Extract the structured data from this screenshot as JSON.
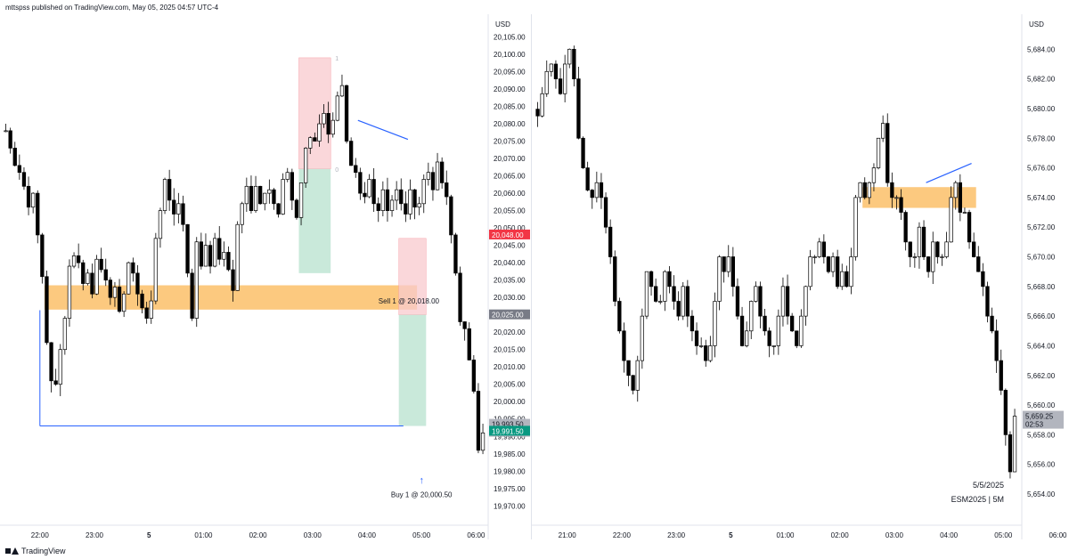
{
  "header": {
    "text": "mttspss published on TradingView.com, May 05, 2025 04:57 UTC-4"
  },
  "footer": {
    "brand": "TradingView"
  },
  "colors": {
    "up_fill": "#ffffff",
    "down_fill": "#000000",
    "wick": "#000000",
    "supply": "#fbbf68",
    "stop": "#f8c9cd",
    "target": "#b7e1cd",
    "trendline": "#2962ff"
  },
  "chart_data": [
    {
      "type": "candlestick",
      "symbol_label": "",
      "currency": "USD",
      "y_ticks": [
        "20,105.00",
        "20,100.00",
        "20,095.00",
        "20,090.00",
        "20,085.00",
        "20,080.00",
        "20,075.00",
        "20,070.00",
        "20,065.00",
        "20,060.00",
        "20,055.00",
        "20,050.00",
        "20,045.00",
        "20,040.00",
        "20,035.00",
        "20,030.00",
        "20,025.00",
        "20,020.00",
        "20,015.00",
        "20,010.00",
        "20,005.00",
        "20,000.00",
        "19,995.00",
        "19,990.00",
        "19,985.00",
        "19,980.00",
        "19,975.00",
        "19,970.00"
      ],
      "y_ticks_values": [
        20105,
        20100,
        20095,
        20090,
        20085,
        20080,
        20075,
        20070,
        20065,
        20060,
        20055,
        20050,
        20045,
        20040,
        20035,
        20030,
        20025,
        20020,
        20015,
        20010,
        20005,
        20000,
        19995,
        19990,
        19985,
        19980,
        19975,
        19970
      ],
      "ylim": [
        19967,
        20110
      ],
      "x_ticks": [
        "22:00",
        "23:00",
        "5",
        "01:00",
        "02:00",
        "03:00",
        "04:00",
        "05:00",
        "06:00"
      ],
      "x_tick_bold": [
        false,
        false,
        true,
        false,
        false,
        false,
        false,
        false,
        false
      ],
      "x_start": "21:20",
      "bar_minutes": 5,
      "price_tags": [
        {
          "label": "20,048.00",
          "value": 20048.0,
          "color": "#f23645",
          "text_color": "#ffffff"
        },
        {
          "label": "20,025.00",
          "value": 20025.0,
          "color": "#787b86",
          "text_color": "#ffffff"
        },
        {
          "label": "19,993.50",
          "sub": "02:53",
          "value": 19993.5,
          "color": "#b2b5be",
          "text_color": "#131722"
        },
        {
          "label": "19,991.50",
          "value": 19991.5,
          "color": "#089981",
          "text_color": "#ffffff"
        }
      ],
      "annotations": {
        "sell_label": "Sell 1 @ 20,018.00",
        "buy_label": "Buy 1 @ 20,000.50",
        "buy_arrow": "↑",
        "marker_1": "1",
        "marker_0": "0"
      },
      "zones": [
        {
          "kind": "supply",
          "from": "22:05",
          "to": "04:55",
          "high": 20033.5,
          "low": 20026.5
        },
        {
          "kind": "stop",
          "from": "02:45",
          "to": "03:20",
          "high": 20099,
          "low": 20067
        },
        {
          "kind": "target",
          "from": "02:45",
          "to": "03:20",
          "high": 20067,
          "low": 20037
        },
        {
          "kind": "stop",
          "from": "04:35",
          "to": "05:05",
          "high": 20047,
          "low": 20025
        },
        {
          "kind": "target",
          "from": "04:35",
          "to": "05:05",
          "high": 20025,
          "low": 19993
        }
      ],
      "lines": [
        {
          "kind": "trend",
          "from": "03:50",
          "to": "04:45",
          "start": 20081,
          "end": 20075.5
        },
        {
          "kind": "level",
          "from": "22:00",
          "to": "04:40",
          "value": 19993
        }
      ],
      "closes": [
        20078,
        20073,
        20068,
        20066,
        20062,
        20056,
        20060,
        20048,
        20036,
        20017,
        20006,
        20005,
        20015,
        20024,
        20039,
        20042,
        20040,
        20034,
        20037,
        20031,
        20041,
        20038,
        20035,
        20030,
        20033,
        20026,
        20031,
        20040,
        20037,
        20031,
        20027,
        20024,
        20029,
        20047,
        20055,
        20064,
        20058,
        20054,
        20057,
        20051,
        20037,
        20024,
        20046,
        20039,
        20045,
        20039,
        20047,
        20041,
        20043,
        20038,
        20032,
        20051,
        20057,
        20062,
        20055,
        20062,
        20057,
        20060,
        20061,
        20057,
        20054,
        20064,
        20066,
        20058,
        20053,
        20063,
        20073,
        20076,
        20075,
        20080,
        20083,
        20077,
        20081,
        20088,
        20091,
        20075,
        20068,
        20066,
        20060,
        20059,
        20064,
        20057,
        20055,
        20061,
        20055,
        20058,
        20061,
        20057,
        20054,
        20061,
        20056,
        20057,
        20064,
        20066,
        20061,
        20069,
        20063,
        20059,
        20048,
        20037,
        20023,
        20021,
        20012,
        20003,
        19986,
        19991
      ]
    },
    {
      "type": "candlestick",
      "currency": "USD",
      "y_ticks": [
        "5,684.00",
        "5,682.00",
        "5,680.00",
        "5,678.00",
        "5,676.00",
        "5,674.00",
        "5,672.00",
        "5,670.00",
        "5,668.00",
        "5,666.00",
        "5,664.00",
        "5,662.00",
        "5,660.00",
        "5,658.00",
        "5,656.00",
        "5,654.00"
      ],
      "y_ticks_values": [
        5684,
        5682,
        5680,
        5678,
        5676,
        5674,
        5672,
        5670,
        5668,
        5666,
        5664,
        5662,
        5660,
        5658,
        5656,
        5654
      ],
      "ylim": [
        5652.5,
        5686
      ],
      "x_ticks": [
        "21:00",
        "22:00",
        "23:00",
        "5",
        "01:00",
        "02:00",
        "03:00",
        "04:00",
        "05:00",
        "06:00"
      ],
      "x_tick_bold": [
        false,
        false,
        false,
        true,
        false,
        false,
        false,
        false,
        false,
        false
      ],
      "x_start": "20:25",
      "bar_minutes": 5,
      "price_tags": [
        {
          "label": "5,659.25",
          "sub": "02:53",
          "value": 5659.25,
          "color": "#b2b5be",
          "text_color": "#131722"
        }
      ],
      "watermark": {
        "date": "5/5/2025",
        "symbol": "ESM2025 | 5M"
      },
      "zones": [
        {
          "kind": "supply",
          "from": "02:25",
          "to": "04:30",
          "high": 5674.7,
          "low": 5673.3
        }
      ],
      "lines": [
        {
          "kind": "trend",
          "from": "03:35",
          "to": "04:25",
          "start": 5675.0,
          "end": 5676.3
        }
      ],
      "closes": [
        5679.5,
        5681,
        5682.5,
        5683,
        5682,
        5681,
        5683,
        5684,
        5682,
        5678,
        5676,
        5674.5,
        5674,
        5675,
        5674,
        5672,
        5670,
        5667,
        5665,
        5663,
        5662,
        5661,
        5663,
        5666,
        5669,
        5668,
        5667,
        5667,
        5669,
        5668,
        5667,
        5666,
        5668,
        5666,
        5665,
        5664,
        5664,
        5663,
        5664,
        5667,
        5670,
        5669,
        5670,
        5668,
        5666,
        5664,
        5665,
        5667,
        5668,
        5666,
        5665,
        5664,
        5664,
        5666,
        5668,
        5666,
        5665,
        5664,
        5666,
        5668,
        5670,
        5670,
        5671,
        5670,
        5669,
        5670,
        5668,
        5669,
        5668,
        5670,
        5674,
        5675,
        5674,
        5675,
        5676,
        5678,
        5679,
        5675,
        5674,
        5674,
        5673,
        5671,
        5670,
        5670,
        5672,
        5670,
        5669,
        5671,
        5670,
        5670,
        5671,
        5674,
        5675,
        5673,
        5673,
        5671,
        5670,
        5669,
        5668,
        5666,
        5665,
        5663,
        5661,
        5658,
        5655.5,
        5659.25
      ]
    }
  ]
}
